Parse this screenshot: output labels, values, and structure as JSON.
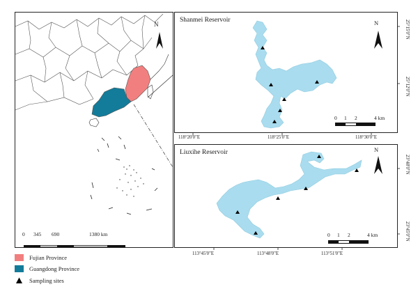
{
  "colors": {
    "fujian": "#f27f7f",
    "guangdong": "#137c9a",
    "reservoir": "#a9dcee",
    "site": "#000000",
    "border": "#333333"
  },
  "overview": {
    "north_label": "N",
    "scale_ticks": [
      "0",
      "345",
      "690",
      "1380 km"
    ]
  },
  "shanmei": {
    "title": "Shanmei Reservoir",
    "north_label": "N",
    "scale_ticks": [
      "0",
      "1",
      "2",
      "4 km"
    ],
    "lat_ticks": [
      "25°15'0\"N",
      "25°12'0\"N"
    ],
    "lon_ticks": [
      "118°20'0\"E",
      "118°25'0\"E",
      "118°30'0\"E"
    ]
  },
  "liuxihe": {
    "title": "Liuxihe Reservoir",
    "north_label": "N",
    "scale_ticks": [
      "0",
      "1",
      "2",
      "4 km"
    ],
    "lat_ticks": [
      "23°48'0\"N",
      "23°45'0\"N"
    ],
    "lon_ticks": [
      "113°45'0\"E",
      "113°48'0\"E",
      "113°51'0\"E"
    ]
  },
  "legend": {
    "items": [
      {
        "label": "Fujian Province",
        "icon": "fujian-swatch"
      },
      {
        "label": "Guangdong Province",
        "icon": "guangdong-swatch"
      },
      {
        "label": "Sampling sites",
        "icon": "triangle-marker"
      }
    ]
  }
}
